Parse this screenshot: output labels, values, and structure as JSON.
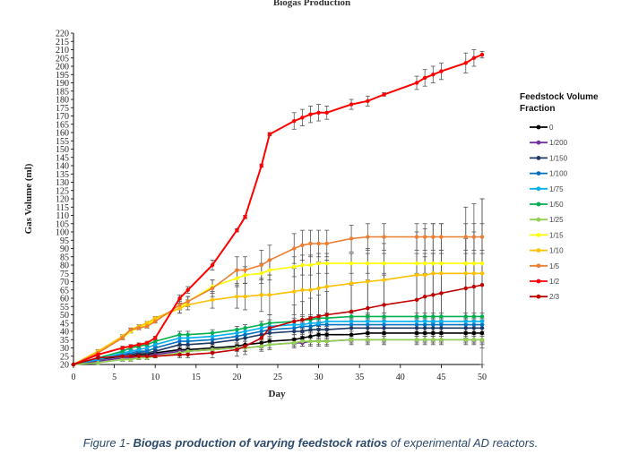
{
  "caption": {
    "prefix": "Figure 1- ",
    "bold": "Biogas production of varying feedstock ratios",
    "suffix": " of experimental AD reactors."
  },
  "chart_data": {
    "type": "line",
    "title": "Biogas Production",
    "xlabel": "Day",
    "ylabel": "Gas Volume (ml)",
    "xlim": [
      0,
      50
    ],
    "ylim": [
      20,
      220
    ],
    "xticks": [
      0,
      5,
      10,
      15,
      20,
      25,
      30,
      35,
      40,
      45,
      50
    ],
    "yticks": [
      20,
      25,
      30,
      35,
      40,
      45,
      50,
      55,
      60,
      65,
      70,
      75,
      80,
      85,
      90,
      95,
      100,
      105,
      110,
      115,
      120,
      125,
      130,
      135,
      140,
      145,
      150,
      155,
      160,
      165,
      170,
      175,
      180,
      185,
      190,
      195,
      200,
      205,
      210,
      215,
      220
    ],
    "grid": false,
    "legend": {
      "title": "Feedstock Volume Fraction",
      "position": "right"
    },
    "series": [
      {
        "name": "0",
        "color": "#000000",
        "x": [
          0,
          3,
          6,
          7,
          8,
          9,
          10,
          13,
          14,
          17,
          20,
          21,
          23,
          24,
          27,
          28,
          29,
          30,
          31,
          34,
          36,
          38,
          42,
          43,
          44,
          45,
          48,
          49,
          50
        ],
        "y": [
          20,
          23,
          25,
          25,
          26,
          26,
          27,
          29,
          29,
          30,
          31,
          32,
          33,
          34,
          35,
          36,
          37,
          38,
          38,
          38,
          39,
          39,
          39,
          39,
          39,
          39,
          39,
          39,
          39
        ],
        "err": [
          0,
          1,
          1,
          1,
          1,
          1,
          1,
          2,
          2,
          2,
          2,
          2,
          2,
          2,
          3,
          3,
          3,
          3,
          3,
          4,
          5,
          5,
          5,
          5,
          5,
          5,
          5,
          5,
          5
        ]
      },
      {
        "name": "1/200",
        "color": "#7030a0",
        "x": [
          0,
          3,
          6,
          7,
          8,
          9,
          10,
          13,
          14,
          17,
          20,
          21,
          23,
          24,
          27,
          28,
          29,
          30,
          31,
          34,
          36,
          38,
          42,
          43,
          44,
          45,
          48,
          49,
          50
        ],
        "y": [
          20,
          22,
          24,
          24,
          25,
          25,
          26,
          28,
          28,
          29,
          30,
          30,
          31,
          32,
          33,
          33,
          34,
          34,
          34,
          35,
          35,
          35,
          35,
          35,
          35,
          35,
          35,
          35,
          35
        ],
        "err": [
          0,
          1,
          1,
          1,
          1,
          1,
          1,
          2,
          2,
          2,
          2,
          2,
          2,
          2,
          2,
          2,
          2,
          2,
          2,
          2,
          2,
          2,
          2,
          2,
          2,
          2,
          2,
          2,
          2
        ]
      },
      {
        "name": "1/150",
        "color": "#1f3864",
        "x": [
          0,
          3,
          6,
          7,
          8,
          9,
          10,
          13,
          14,
          17,
          20,
          21,
          23,
          24,
          27,
          28,
          29,
          30,
          31,
          34,
          36,
          38,
          42,
          43,
          44,
          45,
          48,
          49,
          50
        ],
        "y": [
          20,
          23,
          26,
          26,
          27,
          27,
          28,
          32,
          32,
          33,
          35,
          36,
          38,
          39,
          40,
          40,
          41,
          41,
          41,
          42,
          42,
          42,
          42,
          42,
          42,
          42,
          42,
          42,
          42
        ],
        "err": [
          0,
          1,
          1,
          1,
          1,
          1,
          1,
          2,
          2,
          2,
          2,
          2,
          2,
          2,
          2,
          2,
          2,
          2,
          2,
          2,
          2,
          2,
          2,
          2,
          2,
          2,
          2,
          2,
          2
        ]
      },
      {
        "name": "1/100",
        "color": "#0070c0",
        "x": [
          0,
          3,
          6,
          7,
          8,
          9,
          10,
          13,
          14,
          17,
          20,
          21,
          23,
          24,
          27,
          28,
          29,
          30,
          31,
          34,
          36,
          38,
          42,
          43,
          44,
          45,
          48,
          49,
          50
        ],
        "y": [
          20,
          23,
          26,
          27,
          28,
          28,
          30,
          34,
          34,
          35,
          37,
          38,
          40,
          41,
          42,
          43,
          43,
          44,
          44,
          44,
          44,
          44,
          44,
          44,
          44,
          44,
          44,
          44,
          44
        ],
        "err": [
          0,
          1,
          1,
          1,
          1,
          1,
          1,
          2,
          2,
          2,
          2,
          2,
          2,
          2,
          2,
          2,
          2,
          2,
          2,
          2,
          2,
          2,
          2,
          2,
          2,
          2,
          2,
          2,
          2
        ]
      },
      {
        "name": "1/75",
        "color": "#00b0f0",
        "x": [
          0,
          3,
          6,
          7,
          8,
          9,
          10,
          13,
          14,
          17,
          20,
          21,
          23,
          24,
          27,
          28,
          29,
          30,
          31,
          34,
          36,
          38,
          42,
          43,
          44,
          45,
          48,
          49,
          50
        ],
        "y": [
          20,
          23,
          27,
          28,
          29,
          30,
          32,
          36,
          36,
          37,
          39,
          40,
          42,
          43,
          44,
          44,
          45,
          45,
          46,
          46,
          46,
          46,
          46,
          46,
          46,
          46,
          46,
          46,
          46
        ],
        "err": [
          0,
          1,
          1,
          1,
          1,
          1,
          1,
          2,
          2,
          2,
          2,
          2,
          2,
          2,
          2,
          2,
          2,
          2,
          2,
          2,
          2,
          2,
          2,
          2,
          2,
          2,
          2,
          2,
          2
        ]
      },
      {
        "name": "1/50",
        "color": "#00b050",
        "x": [
          0,
          3,
          6,
          7,
          8,
          9,
          10,
          13,
          14,
          17,
          20,
          21,
          23,
          24,
          27,
          28,
          29,
          30,
          31,
          34,
          36,
          38,
          42,
          43,
          44,
          45,
          48,
          49,
          50
        ],
        "y": [
          20,
          24,
          28,
          30,
          31,
          32,
          34,
          38,
          38,
          39,
          41,
          42,
          44,
          45,
          46,
          47,
          47,
          48,
          48,
          49,
          49,
          49,
          49,
          49,
          49,
          49,
          49,
          49,
          49
        ],
        "err": [
          0,
          1,
          1,
          1,
          1,
          1,
          1,
          2,
          2,
          2,
          2,
          2,
          2,
          2,
          2,
          2,
          2,
          2,
          2,
          2,
          2,
          2,
          2,
          2,
          2,
          2,
          2,
          2,
          2
        ]
      },
      {
        "name": "1/25",
        "color": "#92d050",
        "x": [
          0,
          3,
          6,
          7,
          8,
          9,
          10,
          13,
          14,
          17,
          20,
          21,
          23,
          24,
          27,
          28,
          29,
          30,
          31,
          34,
          36,
          38,
          42,
          43,
          44,
          45,
          48,
          49,
          50
        ],
        "y": [
          20,
          21,
          23,
          23,
          24,
          24,
          25,
          27,
          28,
          29,
          30,
          30,
          31,
          32,
          33,
          34,
          34,
          34,
          34,
          35,
          35,
          35,
          35,
          35,
          35,
          35,
          35,
          35,
          35
        ],
        "err": [
          0,
          1,
          1,
          1,
          1,
          1,
          1,
          2,
          2,
          2,
          2,
          2,
          3,
          3,
          3,
          3,
          3,
          3,
          3,
          3,
          3,
          3,
          3,
          3,
          3,
          3,
          3,
          3,
          3
        ]
      },
      {
        "name": "1/15",
        "color": "#ffff00",
        "x": [
          0,
          3,
          6,
          7,
          8,
          9,
          10,
          13,
          14,
          17,
          20,
          21,
          23,
          24,
          27,
          28,
          29,
          30,
          31,
          34,
          36,
          38,
          42,
          43,
          44,
          45,
          48,
          49,
          50
        ],
        "y": [
          20,
          28,
          36,
          40,
          42,
          44,
          47,
          54,
          58,
          67,
          72,
          74,
          75,
          77,
          79,
          80,
          80,
          81,
          81,
          81,
          81,
          81,
          81,
          81,
          81,
          81,
          81,
          81,
          81
        ],
        "err": [
          0,
          1,
          1,
          1,
          1,
          1,
          1,
          3,
          3,
          4,
          5,
          5,
          6,
          6,
          6,
          6,
          6,
          6,
          6,
          6,
          6,
          6,
          6,
          6,
          6,
          6,
          6,
          6,
          6
        ]
      },
      {
        "name": "1/10",
        "color": "#ffc000",
        "x": [
          0,
          3,
          6,
          7,
          8,
          9,
          10,
          13,
          14,
          17,
          20,
          21,
          23,
          24,
          27,
          28,
          29,
          30,
          31,
          34,
          36,
          38,
          42,
          43,
          44,
          45,
          48,
          49,
          50
        ],
        "y": [
          20,
          28,
          37,
          41,
          43,
          45,
          48,
          54,
          56,
          59,
          61,
          61,
          62,
          62,
          64,
          65,
          65,
          66,
          67,
          69,
          70,
          71,
          74,
          74,
          75,
          75,
          75,
          75,
          75
        ],
        "err": [
          0,
          1,
          1,
          1,
          1,
          1,
          1,
          3,
          3,
          5,
          7,
          8,
          10,
          12,
          14,
          15,
          15,
          16,
          16,
          18,
          20,
          22,
          26,
          28,
          30,
          30,
          40,
          42,
          45
        ]
      },
      {
        "name": "1/5",
        "color": "#ed7d31",
        "x": [
          0,
          3,
          6,
          7,
          8,
          9,
          10,
          13,
          14,
          17,
          20,
          21,
          23,
          24,
          27,
          28,
          29,
          30,
          31,
          34,
          36,
          38,
          42,
          43,
          44,
          45,
          48,
          49,
          50
        ],
        "y": [
          20,
          27,
          36,
          41,
          42,
          43,
          46,
          56,
          58,
          66,
          77,
          77,
          80,
          83,
          90,
          92,
          93,
          93,
          93,
          96,
          97,
          97,
          97,
          97,
          97,
          97,
          97,
          97,
          97
        ],
        "err": [
          0,
          1,
          1,
          1,
          1,
          1,
          1,
          3,
          3,
          5,
          8,
          8,
          9,
          9,
          9,
          9,
          8,
          8,
          8,
          8,
          8,
          8,
          8,
          8,
          8,
          8,
          8,
          8,
          8
        ]
      },
      {
        "name": "1/2",
        "color": "#ff0000",
        "x": [
          0,
          3,
          6,
          7,
          8,
          9,
          10,
          13,
          14,
          17,
          20,
          21,
          23,
          24,
          27,
          28,
          29,
          30,
          31,
          34,
          36,
          38,
          42,
          43,
          44,
          45,
          48,
          49,
          50
        ],
        "y": [
          20,
          26,
          30,
          31,
          32,
          33,
          36,
          60,
          65,
          80,
          101,
          109,
          140,
          159,
          167,
          169,
          171,
          172,
          172,
          177,
          179,
          183,
          190,
          193,
          195,
          197,
          202,
          205,
          207
        ],
        "err": [
          0,
          1,
          1,
          1,
          1,
          1,
          1,
          2,
          2,
          3,
          1,
          1,
          1,
          1,
          5,
          5,
          5,
          5,
          4,
          3,
          3,
          1,
          4,
          5,
          5,
          5,
          6,
          5,
          2
        ]
      },
      {
        "name": "2/3",
        "color": "#c00000",
        "x": [
          0,
          3,
          6,
          7,
          8,
          9,
          10,
          13,
          14,
          17,
          20,
          21,
          23,
          24,
          27,
          28,
          29,
          30,
          31,
          34,
          36,
          38,
          42,
          43,
          44,
          45,
          48,
          49,
          50
        ],
        "y": [
          20,
          24,
          25,
          25,
          25,
          25,
          25,
          26,
          26,
          27,
          29,
          31,
          36,
          42,
          46,
          47,
          48,
          49,
          50,
          52,
          54,
          56,
          59,
          61,
          62,
          63,
          66,
          67,
          68
        ],
        "err": [
          0,
          1,
          1,
          1,
          1,
          1,
          1,
          2,
          2,
          3,
          4,
          5,
          6,
          8,
          10,
          11,
          12,
          13,
          14,
          16,
          17,
          18,
          22,
          24,
          25,
          26,
          30,
          33,
          52
        ]
      }
    ]
  }
}
